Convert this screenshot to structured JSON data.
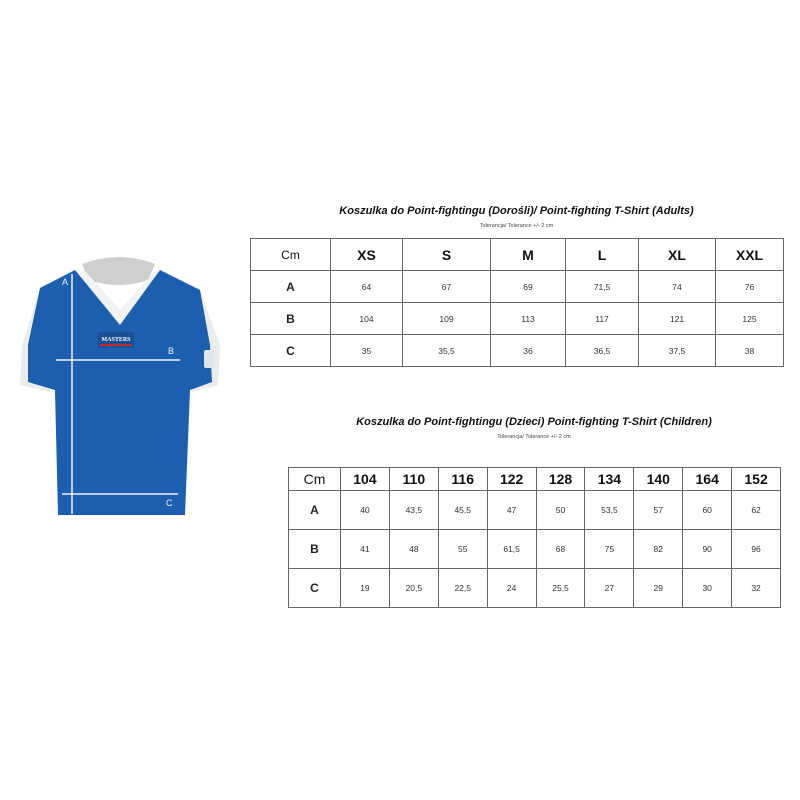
{
  "shirt": {
    "logo_text": "MASTERS",
    "measure_labels": {
      "a": "A",
      "b": "B",
      "c": "C"
    },
    "colors": {
      "body": "#1b5fae",
      "trim": "#f2f2f2"
    }
  },
  "adults": {
    "title": "Koszulka do Point-fightingu (Dorośli)/ Point-fighting T-Shirt (Adults)",
    "tolerance": "Tolerancja/ Tolerance +/- 2 cm",
    "corner": "Cm",
    "sizes": [
      "XS",
      "S",
      "M",
      "L",
      "XL",
      "XXL"
    ],
    "rows": [
      {
        "label": "A",
        "values": [
          "64",
          "67",
          "69",
          "71,5",
          "74",
          "76"
        ]
      },
      {
        "label": "B",
        "values": [
          "104",
          "109",
          "113",
          "117",
          "121",
          "125"
        ]
      },
      {
        "label": "C",
        "values": [
          "35",
          "35,5",
          "36",
          "36,5",
          "37,5",
          "38"
        ]
      }
    ]
  },
  "children": {
    "title": "Koszulka do Point-fightingu (Dzieci) Point-fighting T-Shirt (Children)",
    "tolerance": "Tolerancja/ Tolerance +/- 2 cm",
    "corner": "Cm",
    "sizes": [
      "104",
      "110",
      "116",
      "122",
      "128",
      "134",
      "140",
      "164",
      "152"
    ],
    "rows": [
      {
        "label": "A",
        "values": [
          "40",
          "43,5",
          "45,5",
          "47",
          "50",
          "53,5",
          "57",
          "60",
          "62"
        ]
      },
      {
        "label": "B",
        "values": [
          "41",
          "48",
          "55",
          "61,5",
          "68",
          "75",
          "82",
          "90",
          "96"
        ]
      },
      {
        "label": "C",
        "values": [
          "19",
          "20,5",
          "22,5",
          "24",
          "25,5",
          "27",
          "29",
          "30",
          "32"
        ]
      }
    ]
  }
}
